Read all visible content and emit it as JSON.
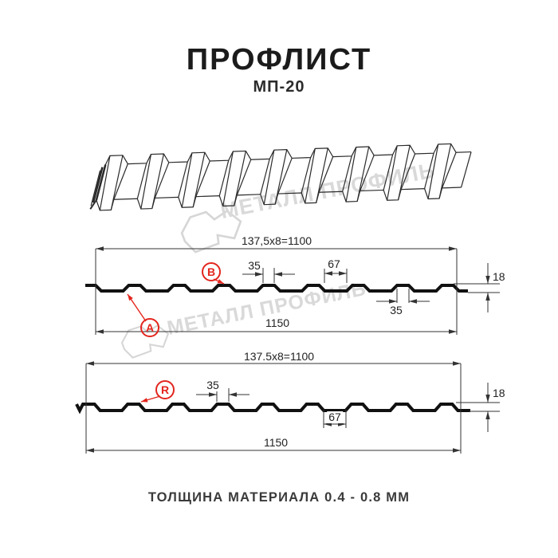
{
  "header": {
    "title": "ПРОФЛИСТ",
    "subtitle": "МП-20"
  },
  "footer": {
    "text": "ТОЛЩИНА МАТЕРИАЛА 0.4 - 0.8 ММ"
  },
  "watermark": {
    "text": "МЕТАЛЛ ПРОФИЛЬ"
  },
  "colors": {
    "accent_red": "#e3251d",
    "drawing_line": "#111111",
    "watermark_gray": "#d9d9d9"
  },
  "diagram_top": {
    "cover_width": "137,5x8=1100",
    "crest_width": "35",
    "valley_width": "67",
    "profile_height": "18",
    "rib_base_width": "35",
    "total_width": "1150",
    "label_a": "A",
    "label_b": "B"
  },
  "diagram_bottom": {
    "cover_width": "137.5x8=1100",
    "crest_width": "35",
    "valley_width": "67",
    "profile_height": "18",
    "total_width": "1150",
    "label_r": "R"
  }
}
